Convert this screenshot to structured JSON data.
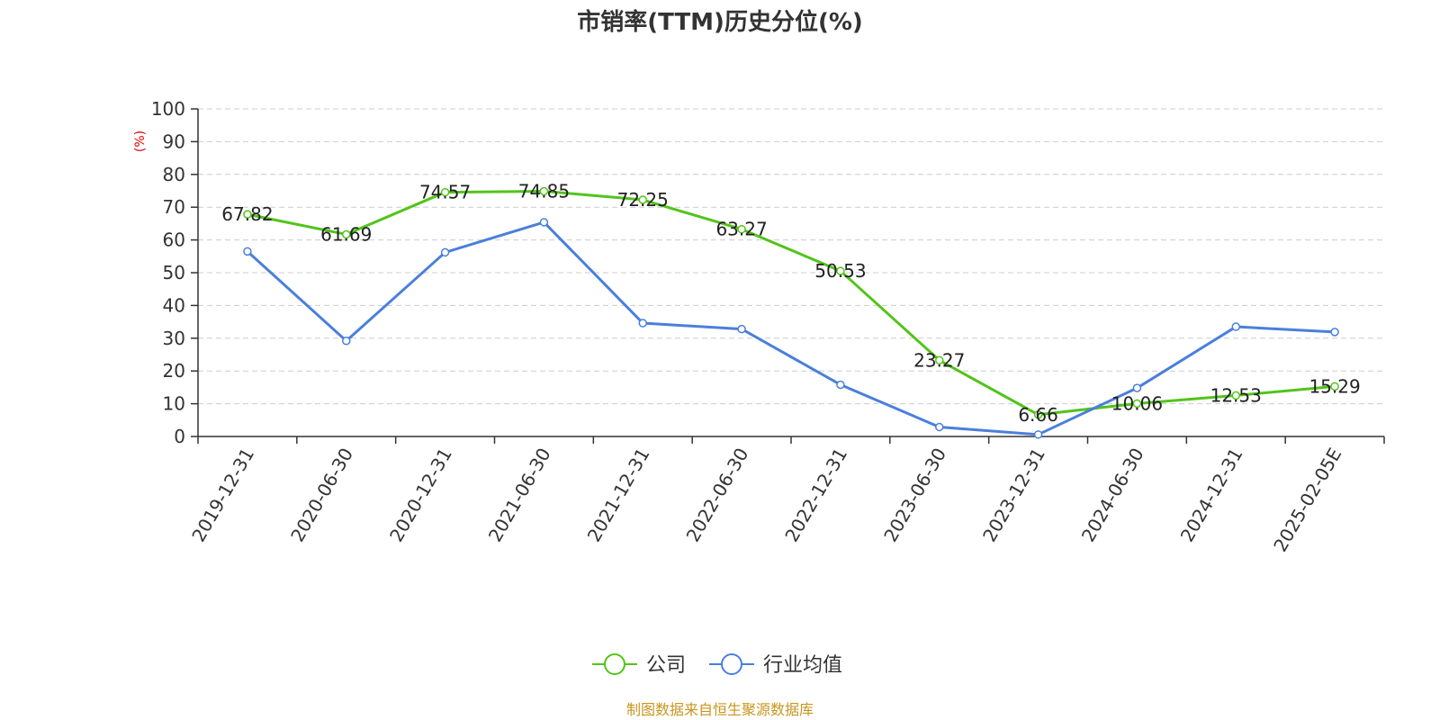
{
  "chart_data": {
    "type": "line",
    "title": "市销率(TTM)历史分位(%)",
    "ylabel": "(%)",
    "ylim": [
      0,
      100
    ],
    "yticks": [
      0,
      10,
      20,
      30,
      40,
      50,
      60,
      70,
      80,
      90,
      100
    ],
    "categories": [
      "2019-12-31",
      "2020-06-30",
      "2020-12-31",
      "2021-06-30",
      "2021-12-31",
      "2022-06-30",
      "2022-12-31",
      "2023-06-30",
      "2023-12-31",
      "2024-06-30",
      "2024-12-31",
      "2025-02-05E"
    ],
    "series": [
      {
        "name": "公司",
        "color": "#52c41a",
        "values": [
          67.82,
          61.69,
          74.57,
          74.85,
          72.25,
          63.27,
          50.53,
          23.27,
          6.66,
          10.06,
          12.53,
          15.29
        ],
        "labels": [
          "67.82",
          "61.69",
          "74.57",
          "74.85",
          "72.25",
          "63.27",
          "50.53",
          "23.27",
          "6.66",
          "10.06",
          "12.53",
          "15.29"
        ]
      },
      {
        "name": "行业均值",
        "color": "#4a7fdc",
        "values": [
          56.5,
          29.2,
          56.2,
          65.4,
          34.6,
          32.8,
          15.8,
          2.9,
          0.6,
          14.8,
          33.5,
          31.9
        ]
      }
    ],
    "grid": true,
    "legend_position": "bottom-center",
    "source": "制图数据来自恒生聚源数据库"
  },
  "colors": {
    "axis": "#333333",
    "grid": "#cccccc",
    "ylabel": "#e00000",
    "source": "#c8961e"
  }
}
